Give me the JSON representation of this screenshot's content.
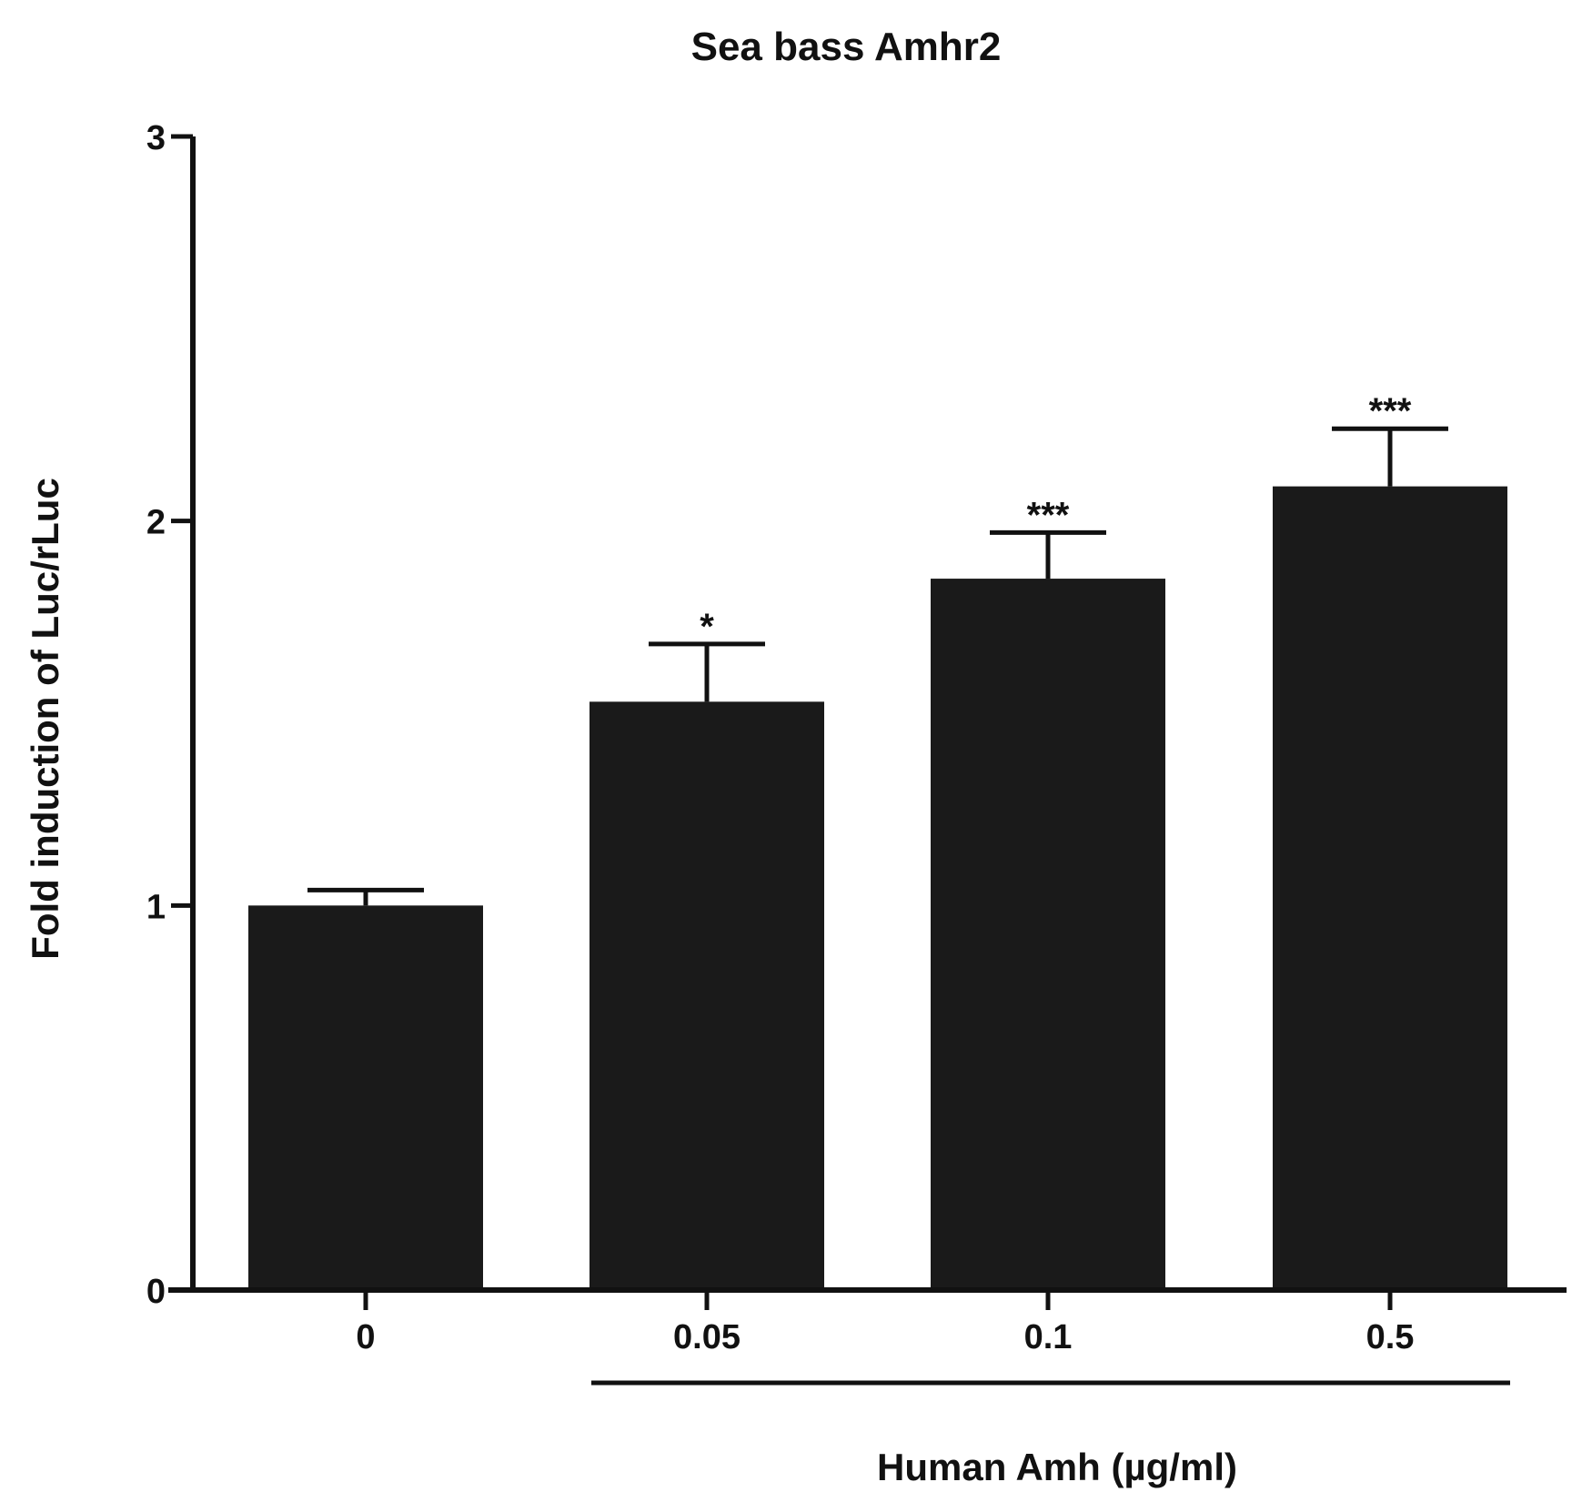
{
  "chart_data": {
    "type": "bar",
    "title": "Sea bass Amhr2",
    "xlabel": "Human Amh (µg/ml)",
    "ylabel": "Fold induction of Luc/rLuc",
    "categories": [
      "0",
      "0.05",
      "0.1",
      "0.5"
    ],
    "values": [
      1.0,
      1.53,
      1.85,
      2.09
    ],
    "error_upper": [
      0.04,
      0.15,
      0.12,
      0.15
    ],
    "annotations": [
      "",
      "*",
      "***",
      "***"
    ],
    "ylim": [
      0,
      3
    ],
    "yticks": [
      "0",
      "1",
      "2",
      "3"
    ],
    "grid": false,
    "bar_color": "#1a1a1a"
  }
}
